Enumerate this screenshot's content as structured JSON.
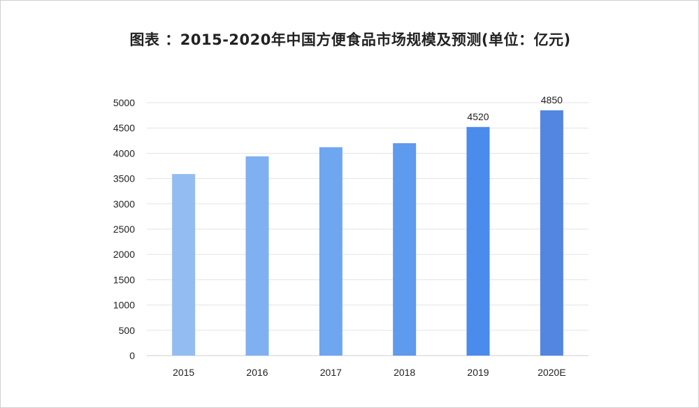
{
  "chart_data": {
    "type": "bar",
    "title": "图表 ：2015-2020年中国方便食品市场规模及预测(单位：亿元)",
    "categories": [
      "2015",
      "2016",
      "2017",
      "2018",
      "2019",
      "2020E"
    ],
    "values": [
      3590,
      3940,
      4120,
      4200,
      4520,
      4850
    ],
    "data_labels": [
      "",
      "",
      "",
      "",
      "4520",
      "4850"
    ],
    "ylim": [
      0,
      5000
    ],
    "yticks": [
      0,
      500,
      1000,
      1500,
      2000,
      2500,
      3000,
      3500,
      4000,
      4500,
      5000
    ],
    "grid": true,
    "bar_colors": [
      "#93bdf2",
      "#7fb0f2",
      "#6ea6f0",
      "#5e9aee",
      "#4a8bec",
      "#5286e0"
    ]
  }
}
